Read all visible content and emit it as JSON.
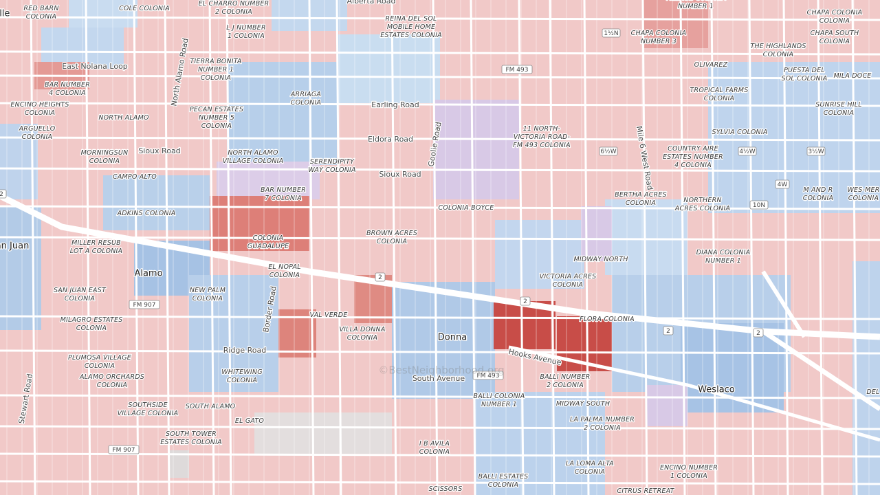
{
  "map": {
    "places": [
      [
        "RED BARN",
        "COLONIA"
      ],
      [
        "COLE COLONIA"
      ],
      [
        "EL CHARRO NUMBER",
        "2 COLONIA"
      ],
      [
        "REINA DEL SOL",
        "MOBILE HOME",
        "ESTATES COLONIA"
      ],
      [
        "L J NUMBER",
        "1 COLONIA"
      ],
      [
        "TIERRA BONITA",
        "NUMBER 1",
        "COLONIA"
      ],
      [
        "BAR NUMBER",
        "4 COLONIA"
      ],
      [
        "ARRIAGA",
        "COLONIA"
      ],
      [
        "ENCINO HEIGHTS",
        "COLONIA"
      ],
      [
        "PECAN ESTATES",
        "NUMBER 5",
        "COLONIA"
      ],
      [
        "NORTH ALAMO"
      ],
      [
        "ARGUELLO",
        "COLONIA"
      ],
      [
        "MORNINGSUN",
        "COLONIA"
      ],
      [
        "NORTH ALAMO",
        "VILLAGE COLONIA"
      ],
      [
        "SERENDIPITY",
        "WAY COLONIA"
      ],
      [
        "CAMPO ALTO"
      ],
      [
        "BAR NUMBER",
        "7 COLONIA"
      ],
      [
        "ADKINS COLONIA"
      ],
      [
        "COLONIA BOYCE"
      ],
      [
        "BROWN ACRES",
        "COLONIA"
      ],
      [
        "COLONIA",
        "GUADALUPE"
      ],
      [
        "MILLER RESUB",
        "LOT A COLONIA"
      ],
      [
        "EL NOPAL",
        "COLONIA"
      ],
      [
        "SAN JUAN EAST",
        "COLONIA"
      ],
      [
        "NEW PALM",
        "COLONIA"
      ],
      [
        "VAL VERDE"
      ],
      [
        "MILAGRO ESTATES",
        "COLONIA"
      ],
      [
        "VILLA DONNA",
        "COLONIA"
      ],
      [
        "PLUMOSA VILLAGE",
        "COLONIA"
      ],
      [
        "WHITEWING",
        "COLONIA"
      ],
      [
        "ALAMO ORCHARDS",
        "COLONIA"
      ],
      [
        "SOUTHSIDE",
        "VILLAGE COLONIA"
      ],
      [
        "SOUTH ALAMO"
      ],
      [
        "EL GATO"
      ],
      [
        "SOUTH TOWER",
        "ESTATES COLONIA"
      ],
      [
        "I B AVILA",
        "COLONIA"
      ],
      [
        "SCISSORS"
      ],
      [
        "BALLI ESTATES",
        "COLONIA"
      ],
      [
        "BALLI COLONIA",
        "NUMBER 1"
      ],
      [
        "BALLI NUMBER",
        "2 COLONIA"
      ],
      [
        "MIDWAY SOUTH"
      ],
      [
        "LA PALMA NUMBER",
        "2 COLONIA"
      ],
      [
        "LA LOMA ALTA",
        "COLONIA"
      ],
      [
        "CITRUS RETREAT"
      ],
      [
        "ENCINO NUMBER",
        "1 COLONIA"
      ],
      [
        "FLORA COLONIA"
      ],
      [
        "VICTORIA ACRES",
        "COLONIA"
      ],
      [
        "MIDWAY NORTH"
      ],
      [
        "DIANA COLONIA",
        "NUMBER 1"
      ],
      [
        "BERTHA ACRES",
        "COLONIA"
      ],
      [
        "NORTHERN",
        "ACRES COLONIA"
      ],
      [
        "COUNTRY AIRE",
        "ESTATES NUMBER",
        "4 COLONIA"
      ],
      [
        "11 NORTH-",
        "VICTORIA ROAD-",
        "FM 493 COLONIA"
      ],
      [
        "TROPICAL FARMS",
        "COLONIA"
      ],
      [
        "SYLVIA COLONIA"
      ],
      [
        "OLIVAREZ"
      ],
      [
        "CHAPA COLONIA",
        "NUMBER 3"
      ],
      [
        "VILLAGE COLONIA",
        "NUMBER 1"
      ],
      [
        "CHAPA COLONIA",
        "COLONIA"
      ],
      [
        "CHAPA SOUTH",
        "COLONIA"
      ],
      [
        "THE HIGHLANDS",
        "COLONIA"
      ],
      [
        "PUESTA DEL",
        "SOL COLONIA"
      ],
      [
        "MILA DOCE"
      ],
      [
        "SUNRISE HILL",
        "COLONIA"
      ],
      [
        "M AND R",
        "COLONIA"
      ],
      [
        "WES-MER",
        "COLONIA"
      ],
      [
        "DEL"
      ]
    ],
    "roads": [
      "East Nolana Loop",
      "North Alamo Road",
      "Earling Road",
      "Eldora Road",
      "Sioux Road",
      "Sioux Road",
      "Goolie Road",
      "Mile 6 West Road",
      "Border Road",
      "Ridge Road",
      "Stewart Road",
      "Hooks Avenue",
      "South Avenue",
      "Alberta Road"
    ],
    "towns": [
      "Alamo",
      "Donna",
      "Weslaco",
      "an Juan",
      "ille"
    ],
    "shields": [
      "1½N",
      "FM 493",
      "6½W",
      "4½W",
      "3½W",
      "4W",
      "10N",
      "2",
      "2",
      "2",
      "2",
      "2",
      "FM 907",
      "FM 493",
      "FM 907"
    ],
    "watermark": "©BestNeighborhood.org"
  }
}
